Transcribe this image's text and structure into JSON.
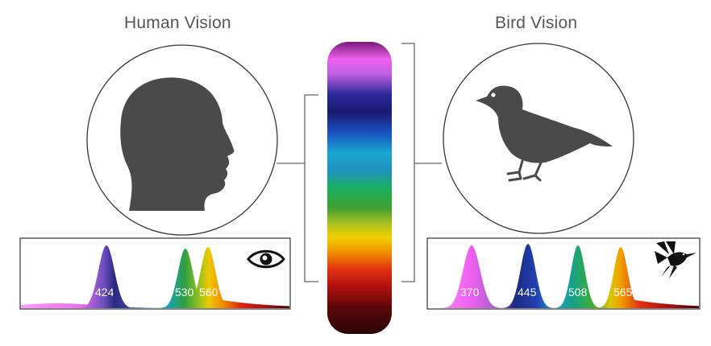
{
  "human": {
    "title": "Human Vision",
    "peaks": [
      {
        "label": "424",
        "color": "#2a2a7a"
      },
      {
        "label": "530",
        "color": "#3ca63c"
      },
      {
        "label": "560",
        "color": "#e8b400"
      }
    ],
    "icon": "eye-icon"
  },
  "bird": {
    "title": "Bird Vision",
    "peaks": [
      {
        "label": "370",
        "color": "#f06ae0"
      },
      {
        "label": "445",
        "color": "#1e2a80"
      },
      {
        "label": "508",
        "color": "#1a8fc0"
      },
      {
        "label": "565",
        "color": "#f0b000"
      }
    ],
    "icon": "hummingbird-icon"
  },
  "colors": {
    "silhouette": "#4a4a4a",
    "outline": "#333333",
    "bracket": "#666666",
    "title_text": "#555555"
  }
}
